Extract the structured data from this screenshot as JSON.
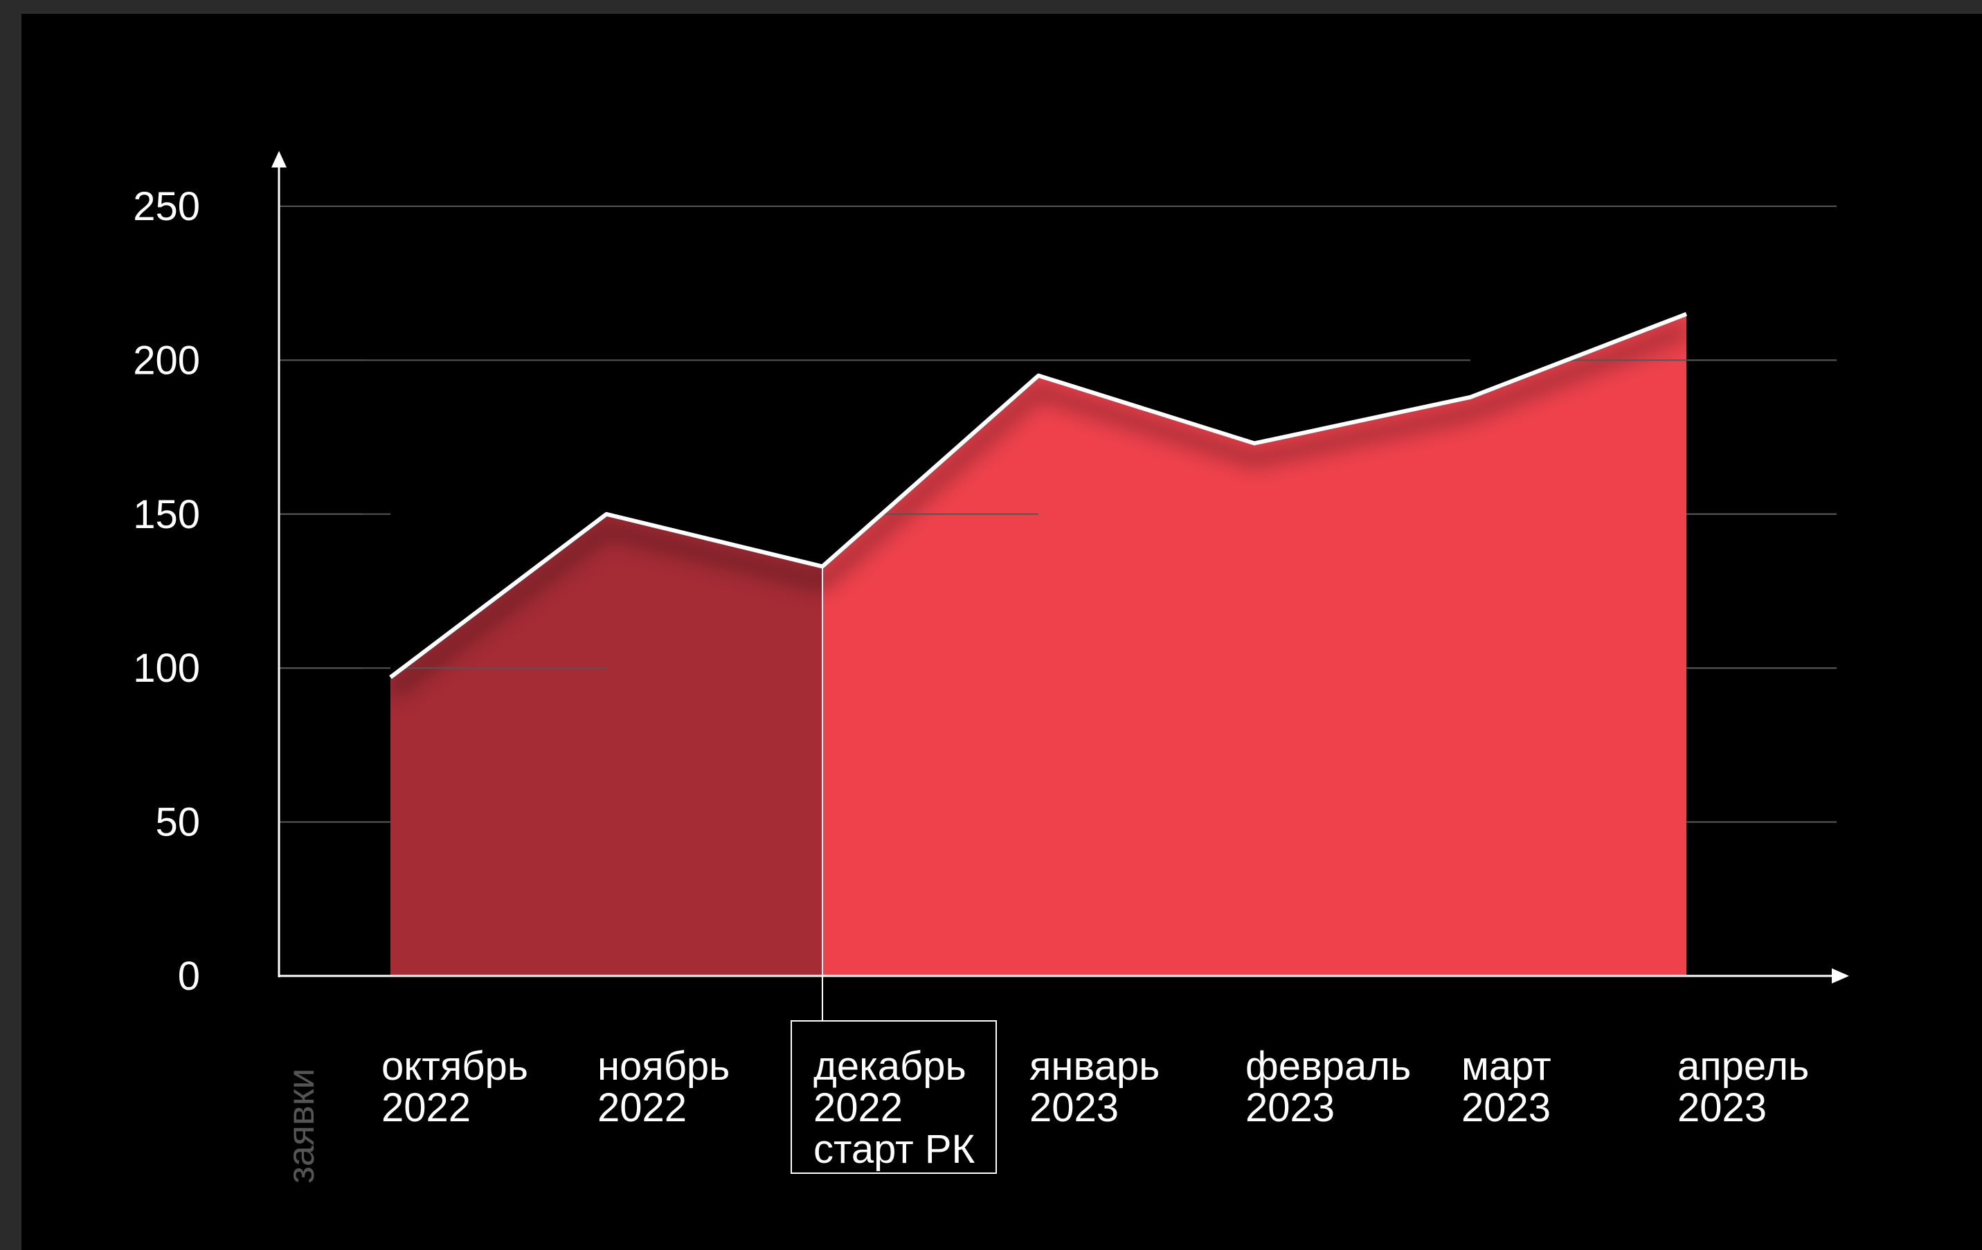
{
  "colors": {
    "background": "#000000",
    "frame": "#2b2b2b",
    "area_before": "#a52b35",
    "area_after": "#ee414c",
    "line": "#ffffff",
    "grid": "#555555",
    "text": "#ffffff",
    "ylabel": "#555555"
  },
  "chart_data": {
    "type": "area",
    "ylabel": "заявки",
    "ylim": [
      0,
      250
    ],
    "yticks": [
      0,
      50,
      100,
      150,
      200,
      250
    ],
    "grid": true,
    "categories": [
      [
        "октябрь",
        "2022"
      ],
      [
        "ноябрь",
        "2022"
      ],
      [
        "декабрь",
        "2022",
        "старт РК"
      ],
      [
        "январь",
        "2023"
      ],
      [
        "февраль",
        "2023"
      ],
      [
        "март",
        "2023"
      ],
      [
        "апрель",
        "2023"
      ]
    ],
    "values": [
      97,
      150,
      133,
      195,
      173,
      188,
      215
    ],
    "highlight_index": 2
  }
}
